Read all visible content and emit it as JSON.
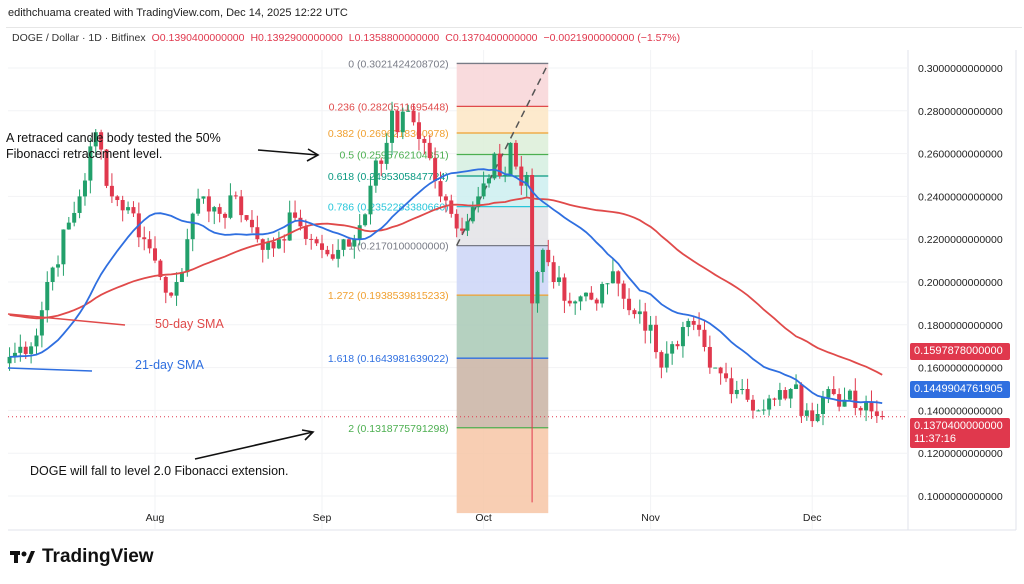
{
  "header": {
    "credit": "edithchuama created with TradingView.com, Dec 14, 2025 12:22 UTC",
    "symbol": "DOGE / Dollar · 1D · Bitfinex",
    "open": "O0.1390400000000",
    "high": "H0.1392900000000",
    "low": "L0.1358800000000",
    "close": "C0.1370400000000",
    "change": "−0.0021900000000 (−1.57%)"
  },
  "colors": {
    "up": "#22a06b",
    "down": "#e0384d",
    "sma21": "#2f6fe0",
    "sma50": "#e04a4a"
  },
  "chart_data": {
    "type": "candlestick",
    "ylim": [
      0.09,
      0.31
    ],
    "y_ticks": [
      "0.3000000000000",
      "0.2800000000000",
      "0.2600000000000",
      "0.2400000000000",
      "0.2200000000000",
      "0.2000000000000",
      "0.1800000000000",
      "0.1600000000000",
      "0.1400000000000",
      "0.1200000000000",
      "0.1000000000000"
    ],
    "x_ticks": [
      "Aug",
      "Sep",
      "Oct",
      "Nov",
      "Dec"
    ],
    "close_anchors": [
      [
        "2025-07-05",
        0.165
      ],
      [
        "2025-07-10",
        0.175
      ],
      [
        "2025-07-12",
        0.2
      ],
      [
        "2025-07-18",
        0.24
      ],
      [
        "2025-07-21",
        0.27
      ],
      [
        "2025-07-24",
        0.24
      ],
      [
        "2025-07-27",
        0.235
      ],
      [
        "2025-07-30",
        0.22
      ],
      [
        "2025-08-01",
        0.21
      ],
      [
        "2025-08-03",
        0.195
      ],
      [
        "2025-08-05",
        0.2
      ],
      [
        "2025-08-07",
        0.22
      ],
      [
        "2025-08-10",
        0.24
      ],
      [
        "2025-08-12",
        0.235
      ],
      [
        "2025-08-14",
        0.23
      ],
      [
        "2025-08-16",
        0.24
      ],
      [
        "2025-08-20",
        0.22
      ],
      [
        "2025-08-21",
        0.215
      ],
      [
        "2025-08-24",
        0.22
      ],
      [
        "2025-08-27",
        0.23
      ],
      [
        "2025-08-30",
        0.22
      ],
      [
        "2025-09-01",
        0.215
      ],
      [
        "2025-09-04",
        0.215
      ],
      [
        "2025-09-07",
        0.22
      ],
      [
        "2025-09-10",
        0.245
      ],
      [
        "2025-09-13",
        0.265
      ],
      [
        "2025-09-14",
        0.28
      ],
      [
        "2025-09-15",
        0.27
      ],
      [
        "2025-09-17",
        0.28
      ],
      [
        "2025-09-20",
        0.265
      ],
      [
        "2025-09-23",
        0.24
      ],
      [
        "2025-09-26",
        0.225
      ],
      [
        "2025-09-29",
        0.235
      ],
      [
        "2025-09-30",
        0.24
      ],
      [
        "2025-10-03",
        0.26
      ],
      [
        "2025-10-05",
        0.25
      ],
      [
        "2025-10-06",
        0.265
      ],
      [
        "2025-10-08",
        0.245
      ],
      [
        "2025-10-09",
        0.25
      ],
      [
        "2025-10-10",
        0.19
      ],
      [
        "2025-10-12",
        0.215
      ],
      [
        "2025-10-14",
        0.2
      ],
      [
        "2025-10-17",
        0.19
      ],
      [
        "2025-10-20",
        0.195
      ],
      [
        "2025-10-22",
        0.19
      ],
      [
        "2025-10-25",
        0.205
      ],
      [
        "2025-10-29",
        0.185
      ],
      [
        "2025-11-01",
        0.18
      ],
      [
        "2025-11-03",
        0.16
      ],
      [
        "2025-11-06",
        0.17
      ],
      [
        "2025-11-09",
        0.18
      ],
      [
        "2025-11-12",
        0.16
      ],
      [
        "2025-11-15",
        0.155
      ],
      [
        "2025-11-18",
        0.15
      ],
      [
        "2025-11-21",
        0.14
      ],
      [
        "2025-11-24",
        0.145
      ],
      [
        "2025-11-27",
        0.15
      ],
      [
        "2025-11-30",
        0.14
      ],
      [
        "2025-12-01",
        0.135
      ],
      [
        "2025-12-04",
        0.15
      ],
      [
        "2025-12-07",
        0.145
      ],
      [
        "2025-12-10",
        0.14
      ],
      [
        "2025-12-14",
        0.137
      ]
    ],
    "fib": {
      "start": "2025-09-26",
      "end": "2025-10-13",
      "levels": [
        {
          "label": "0 (0.3021424208702)",
          "value": 0.3021424208702,
          "color": "#787b86",
          "fill": "#f8d5d7"
        },
        {
          "label": "0.236 (0.2820511695448)",
          "value": 0.2820511695448,
          "color": "#e04a4a",
          "fill": "#fde6c4"
        },
        {
          "label": "0.382 (0.2696218360978)",
          "value": 0.2696218360978,
          "color": "#f0a030",
          "fill": "#dcefd8"
        },
        {
          "label": "0.5 (0.2595762104351)",
          "value": 0.2595762104351,
          "color": "#4caf50",
          "fill": "#d5efe0"
        },
        {
          "label": "0.618 (0.2495305847724)",
          "value": 0.2495305847724,
          "color": "#089981",
          "fill": "#cdeff0"
        },
        {
          "label": "0.786 (0.2352283380660)",
          "value": 0.235228338066,
          "color": "#26c6da",
          "fill": "#e3e3e6"
        },
        {
          "label": "1 (0.2170100000000)",
          "value": 0.21701,
          "color": "#787b86",
          "fill": "#cbd5f7"
        },
        {
          "label": "1.272 (0.1938539815233)",
          "value": 0.1938539815233,
          "color": "#f0a030",
          "fill": "#a8c9b5"
        },
        {
          "label": "1.618 (0.1643981639022)",
          "value": 0.1643981639022,
          "color": "#2f6fe0",
          "fill": "#c9b3a3"
        },
        {
          "label": "2 (0.1318775791298)",
          "value": 0.1318775791298,
          "color": "#4caf50",
          "fill": "#f7c6a6"
        }
      ]
    },
    "annotations": [
      "A retraced candle body tested the 50%",
      "Fibonacci retracement level.",
      "DOGE  will fall to level 2.0 Fibonacci extension."
    ],
    "series_labels": [
      "50-day SMA",
      "21-day SMA"
    ],
    "price_tags": {
      "sma50": "0.1597878000000",
      "sma21": "0.1449904761905",
      "last": "0.1370400000000",
      "countdown": "11:37:16"
    }
  },
  "brand": "TradingView"
}
